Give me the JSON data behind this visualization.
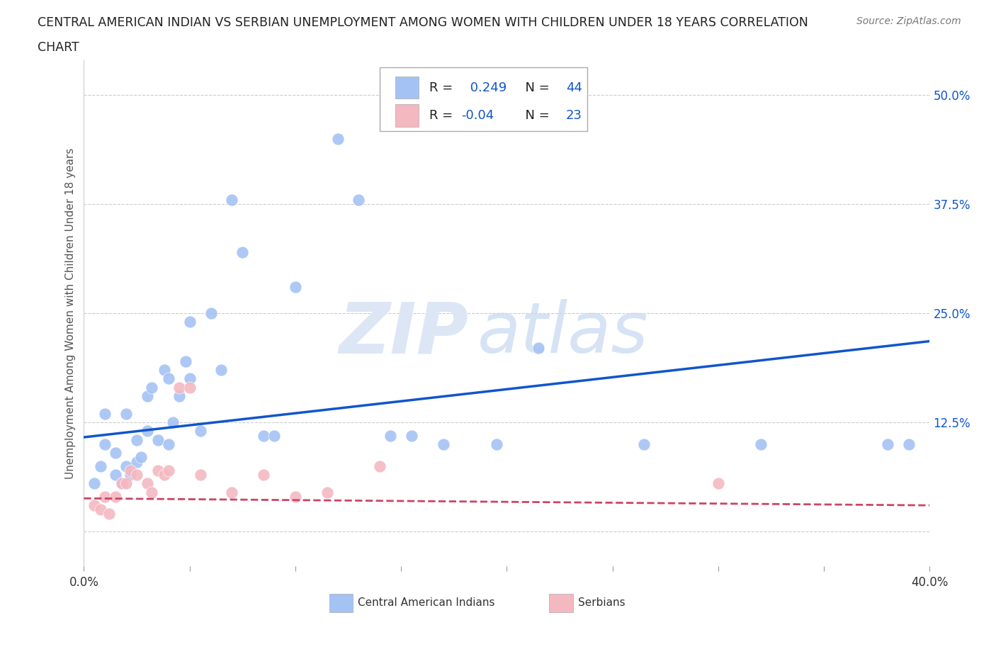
{
  "title_line1": "CENTRAL AMERICAN INDIAN VS SERBIAN UNEMPLOYMENT AMONG WOMEN WITH CHILDREN UNDER 18 YEARS CORRELATION",
  "title_line2": "CHART",
  "source": "Source: ZipAtlas.com",
  "ylabel": "Unemployment Among Women with Children Under 18 years",
  "xlim": [
    0.0,
    0.4
  ],
  "ylim": [
    -0.04,
    0.54
  ],
  "xtick_positions": [
    0.0,
    0.05,
    0.1,
    0.15,
    0.2,
    0.25,
    0.3,
    0.35,
    0.4
  ],
  "xticklabels": [
    "0.0%",
    "",
    "",
    "",
    "",
    "",
    "",
    "",
    "40.0%"
  ],
  "ytick_positions": [
    0.0,
    0.125,
    0.25,
    0.375,
    0.5
  ],
  "yticklabels_right": [
    "",
    "12.5%",
    "25.0%",
    "37.5%",
    "50.0%"
  ],
  "blue_color": "#a4c2f4",
  "pink_color": "#f4b8c1",
  "blue_line_color": "#1155cc",
  "pink_line_color": "#cc4466",
  "R_blue": 0.249,
  "N_blue": 44,
  "R_pink": -0.04,
  "N_pink": 23,
  "legend_label_blue": "Central American Indians",
  "legend_label_pink": "Serbians",
  "blue_line_start_y": 0.108,
  "blue_line_end_y": 0.218,
  "pink_line_start_y": 0.038,
  "pink_line_end_y": 0.03,
  "blue_points_x": [
    0.005,
    0.008,
    0.01,
    0.01,
    0.015,
    0.015,
    0.018,
    0.02,
    0.02,
    0.022,
    0.025,
    0.025,
    0.027,
    0.03,
    0.03,
    0.032,
    0.035,
    0.038,
    0.04,
    0.04,
    0.042,
    0.045,
    0.048,
    0.05,
    0.05,
    0.055,
    0.06,
    0.065,
    0.07,
    0.075,
    0.085,
    0.09,
    0.1,
    0.12,
    0.13,
    0.145,
    0.155,
    0.17,
    0.195,
    0.215,
    0.265,
    0.32,
    0.38,
    0.39
  ],
  "blue_points_y": [
    0.055,
    0.075,
    0.1,
    0.135,
    0.065,
    0.09,
    0.055,
    0.075,
    0.135,
    0.065,
    0.08,
    0.105,
    0.085,
    0.115,
    0.155,
    0.165,
    0.105,
    0.185,
    0.1,
    0.175,
    0.125,
    0.155,
    0.195,
    0.24,
    0.175,
    0.115,
    0.25,
    0.185,
    0.38,
    0.32,
    0.11,
    0.11,
    0.28,
    0.45,
    0.38,
    0.11,
    0.11,
    0.1,
    0.1,
    0.21,
    0.1,
    0.1,
    0.1,
    0.1
  ],
  "pink_points_x": [
    0.005,
    0.008,
    0.01,
    0.012,
    0.015,
    0.018,
    0.02,
    0.022,
    0.025,
    0.03,
    0.032,
    0.035,
    0.038,
    0.04,
    0.045,
    0.05,
    0.055,
    0.07,
    0.085,
    0.1,
    0.115,
    0.14,
    0.3
  ],
  "pink_points_y": [
    0.03,
    0.025,
    0.04,
    0.02,
    0.04,
    0.055,
    0.055,
    0.07,
    0.065,
    0.055,
    0.045,
    0.07,
    0.065,
    0.07,
    0.165,
    0.165,
    0.065,
    0.045,
    0.065,
    0.04,
    0.045,
    0.075,
    0.055
  ]
}
